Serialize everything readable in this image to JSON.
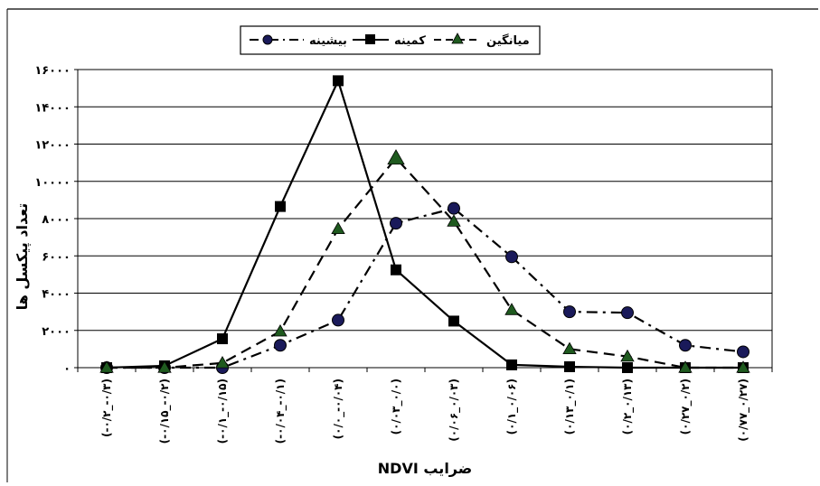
{
  "chart_data": {
    "type": "line",
    "xlabel": "ضرایب NDVI",
    "ylabel": "تعداد پیکسل ها",
    "ylim": [
      0,
      16000
    ],
    "yticks": [
      0,
      2000,
      4000,
      6000,
      8000,
      10000,
      12000,
      14000,
      16000
    ],
    "ytick_labels": [
      "۰",
      "۲۰۰۰",
      "۴۰۰۰",
      "۶۰۰۰",
      "۸۰۰۰",
      "۱۰۰۰۰",
      "۱۲۰۰۰",
      "۱۴۰۰۰",
      "۱۶۰۰۰"
    ],
    "grid": "horizontal",
    "legend": "top-center",
    "categories": [
      "(-۰/۲_-۰/۳)",
      "(-۰/۱۵_-۰/۲)",
      "(-۰/۱_-۰/۱۵)",
      "(-۰/۰۴_-۰/۱)",
      "(۰/۰_-۰/۰۴)",
      "(۰/۰۳_۰/۰)",
      "(۰/۰۶_۰/۰۳)",
      "(۰/۱_۰/۰۶)",
      "(۰/۱۳_۰/۱)",
      "(۰/۲_۰/۱۳)",
      "(۰/۲۷_۰/۲)",
      "(۰/۷۷_۰/۲۷)"
    ],
    "series": [
      {
        "name": "بیشینه",
        "marker": "circle",
        "dash": "dashdot",
        "color": "#000000",
        "values": [
          0,
          0,
          0,
          1200,
          2550,
          7750,
          8550,
          5950,
          3000,
          2950,
          1200,
          850
        ]
      },
      {
        "name": "کمینه",
        "marker": "square",
        "dash": "solid",
        "color": "#000000",
        "values": [
          0,
          100,
          1550,
          8650,
          15400,
          5250,
          2500,
          150,
          50,
          0,
          0,
          0
        ]
      },
      {
        "name": "میانگین",
        "marker": "triangle",
        "dash": "dashed",
        "color": "#000000",
        "marker_fill": "#1f5a1f",
        "values": [
          0,
          0,
          250,
          1950,
          7450,
          11250,
          7850,
          3100,
          1000,
          600,
          0,
          0
        ]
      }
    ]
  }
}
